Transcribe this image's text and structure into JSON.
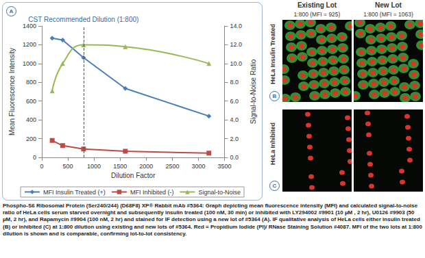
{
  "chart_data": {
    "type": "line",
    "x_label": "Dilution Factor",
    "y_label": "Mean Fluorescence Intensity",
    "y2_label": "Signal-to-Noise Ratio",
    "xlim": [
      0,
      3500
    ],
    "xticks": [
      0,
      500,
      1000,
      1500,
      2000,
      2500,
      3000,
      3500
    ],
    "ylim": [
      0,
      1400
    ],
    "yticks": [
      0,
      200,
      400,
      600,
      800,
      1000,
      1200,
      1400
    ],
    "y2lim": [
      0,
      14
    ],
    "y2ticks": [
      {
        "value": 0,
        "label": "0.0"
      },
      {
        "value": 2,
        "label": "2.0"
      },
      {
        "value": 4,
        "label": "4.0"
      },
      {
        "value": 6,
        "label": "6.0"
      },
      {
        "value": 8,
        "label": "8.0"
      },
      {
        "value": 10,
        "label": "10.0"
      },
      {
        "value": 12,
        "label": "12.0"
      },
      {
        "value": 14,
        "label": "14.0"
      }
    ],
    "x": [
      200,
      400,
      800,
      1600,
      3200
    ],
    "series": [
      {
        "name": "MFI Insulin Treated (+)",
        "color": "#4a7ebb",
        "marker": "diamond",
        "line_style": "solid",
        "values": [
          1270,
          1250,
          1063,
          735,
          440
        ]
      },
      {
        "name": "MFI Inhibited (-)",
        "color": "#be4b48",
        "marker": "square",
        "line_style": "solid",
        "values": [
          180,
          125,
          90,
          65,
          45
        ]
      },
      {
        "name": "Signal-to-Noise",
        "color": "#98b954",
        "marker": "triangle",
        "line_style": "solid",
        "axis": "y2",
        "values": [
          7.1,
          10.0,
          12.0,
          11.8,
          10.0
        ]
      }
    ],
    "annotations": [
      {
        "text": "CST Recommended Dilution (1:800)",
        "x": 800,
        "line_style": "dashed"
      }
    ],
    "legend": "bottom",
    "grid": false
  },
  "figure": {
    "panel_labels": [
      "A",
      "B",
      "C"
    ],
    "columns": [
      "Existing Lot",
      "New Lot"
    ],
    "image_labels": [
      "1:800 (MFI = 925)",
      "1:800 (MFI = 1063)"
    ],
    "rows": [
      "HeLa Insulin Treated",
      "HeLa Inhibited"
    ],
    "caption_lead": "Phospho-S6 Ribosomal Protein (Ser240/244) (D68F8) XP® Rabbit mAb #5364:",
    "caption": "Graph depicting mean fluorescence intensity (MFI) and calculated signal-to-noise ratio of HeLa cells serum starved overnight and subsequently insulin treated (100 nM, 30 min) or inhibited with LY294002 #9901 (10 µM , 2 hr), U0126 #9903 (50 µM, 2 hr), and Rapamycin #9904 (100 nM, 2 hr) and stained for IF detection using a new lot of  #5364 (A). IF qualitative analysis of HeLa cells either insulin treated (B) or inhibited (C) at 1:800 dilution using existing and new lots of  #5364. Red = Propidium Iodide (PI)/ RNase Staining Solution #4087. MFI of the two lots at 1:800 dilution is shown and is comparable, confirming lot-to-lot consistency."
  }
}
